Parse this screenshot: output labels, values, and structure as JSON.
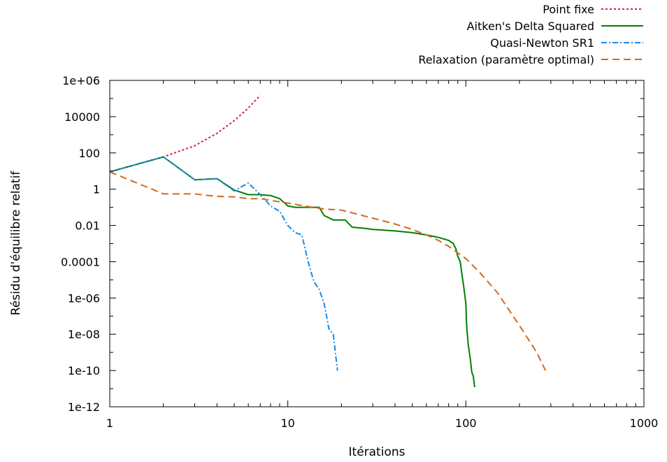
{
  "chart_data": {
    "type": "line",
    "xscale": "log",
    "yscale": "log",
    "xlim": [
      1,
      1000
    ],
    "ylim": [
      1e-12,
      1000000.0
    ],
    "xlabel": "Itérations",
    "ylabel": "Résidu d'équilibre relatif",
    "x_ticks": [
      {
        "value": 1,
        "label": "1"
      },
      {
        "value": 10,
        "label": "10"
      },
      {
        "value": 100,
        "label": "100"
      },
      {
        "value": 1000,
        "label": "1000"
      }
    ],
    "y_ticks": [
      {
        "value": 1e-12,
        "label": "1e-12"
      },
      {
        "value": 1e-10,
        "label": "1e-10"
      },
      {
        "value": 1e-08,
        "label": "1e-08"
      },
      {
        "value": 1e-06,
        "label": "1e-06"
      },
      {
        "value": 0.0001,
        "label": "0.0001"
      },
      {
        "value": 0.01,
        "label": "0.01"
      },
      {
        "value": 1,
        "label": "1"
      },
      {
        "value": 100,
        "label": "100"
      },
      {
        "value": 10000,
        "label": "10000"
      },
      {
        "value": 1000000.0,
        "label": "1e+06"
      }
    ],
    "grid": false,
    "legend_position": "top-right",
    "series": [
      {
        "name": "Point fixe",
        "color": "#d6204e",
        "dash": "3,3",
        "points": [
          [
            1,
            9
          ],
          [
            2,
            60
          ],
          [
            3,
            250
          ],
          [
            4,
            1200
          ],
          [
            5,
            6000
          ],
          [
            6,
            30000
          ],
          [
            7,
            150000
          ]
        ]
      },
      {
        "name": "Aitken's Delta Squared",
        "color": "#008000",
        "dash": "",
        "points": [
          [
            1,
            9
          ],
          [
            2,
            60
          ],
          [
            3,
            3.3
          ],
          [
            4,
            3.8
          ],
          [
            5,
            0.9
          ],
          [
            6,
            0.5
          ],
          [
            7,
            0.5
          ],
          [
            8,
            0.45
          ],
          [
            9,
            0.3
          ],
          [
            10,
            0.12
          ],
          [
            11,
            0.1
          ],
          [
            12,
            0.1
          ],
          [
            13,
            0.1
          ],
          [
            14,
            0.1
          ],
          [
            15,
            0.1
          ],
          [
            16,
            0.035
          ],
          [
            18,
            0.02
          ],
          [
            21,
            0.02
          ],
          [
            23,
            0.008
          ],
          [
            27,
            0.007
          ],
          [
            30,
            0.006
          ],
          [
            40,
            0.005
          ],
          [
            50,
            0.004
          ],
          [
            60,
            0.003
          ],
          [
            70,
            0.0022
          ],
          [
            80,
            0.0015
          ],
          [
            85,
            0.001
          ],
          [
            88,
            0.0005
          ],
          [
            90,
            0.0002
          ],
          [
            93,
            0.0001
          ],
          [
            95,
            2e-05
          ],
          [
            97,
            5e-06
          ],
          [
            100,
            5e-07
          ],
          [
            101,
            3e-08
          ],
          [
            103,
            3e-09
          ],
          [
            106,
            4e-10
          ],
          [
            108,
            8e-11
          ],
          [
            110,
            5e-11
          ],
          [
            112,
            1.2e-11
          ]
        ]
      },
      {
        "name": "Quasi-Newton SR1",
        "color": "#1e88e5",
        "dash": "8,3,2,3",
        "points": [
          [
            1,
            9
          ],
          [
            2,
            60
          ],
          [
            3,
            3.3
          ],
          [
            4,
            3.8
          ],
          [
            5,
            0.8
          ],
          [
            6,
            2.2
          ],
          [
            7,
            0.5
          ],
          [
            8,
            0.12
          ],
          [
            9,
            0.06
          ],
          [
            10,
            0.01
          ],
          [
            11,
            0.004
          ],
          [
            12,
            0.003
          ],
          [
            13,
            0.0001
          ],
          [
            14,
            8e-06
          ],
          [
            15,
            3e-06
          ],
          [
            16,
            5e-07
          ],
          [
            17,
            2e-08
          ],
          [
            18,
            1e-08
          ],
          [
            19,
            1e-10
          ]
        ]
      },
      {
        "name": "Relaxation (paramètre optimal)",
        "color": "#d2691e",
        "dash": "10,6",
        "points": [
          [
            1,
            9
          ],
          [
            2,
            0.55
          ],
          [
            3,
            0.55
          ],
          [
            4,
            0.4
          ],
          [
            5,
            0.38
          ],
          [
            6,
            0.3
          ],
          [
            7,
            0.3
          ],
          [
            8,
            0.24
          ],
          [
            10,
            0.17
          ],
          [
            13,
            0.11
          ],
          [
            16,
            0.08
          ],
          [
            20,
            0.07
          ],
          [
            25,
            0.04
          ],
          [
            30,
            0.025
          ],
          [
            40,
            0.012
          ],
          [
            50,
            0.006
          ],
          [
            60,
            0.003
          ],
          [
            70,
            0.0015
          ],
          [
            80,
            0.0007
          ],
          [
            100,
            0.00015
          ],
          [
            120,
            2.5e-05
          ],
          [
            150,
            2e-06
          ],
          [
            200,
            3e-08
          ],
          [
            250,
            1e-09
          ],
          [
            280,
            1e-10
          ]
        ]
      }
    ]
  }
}
